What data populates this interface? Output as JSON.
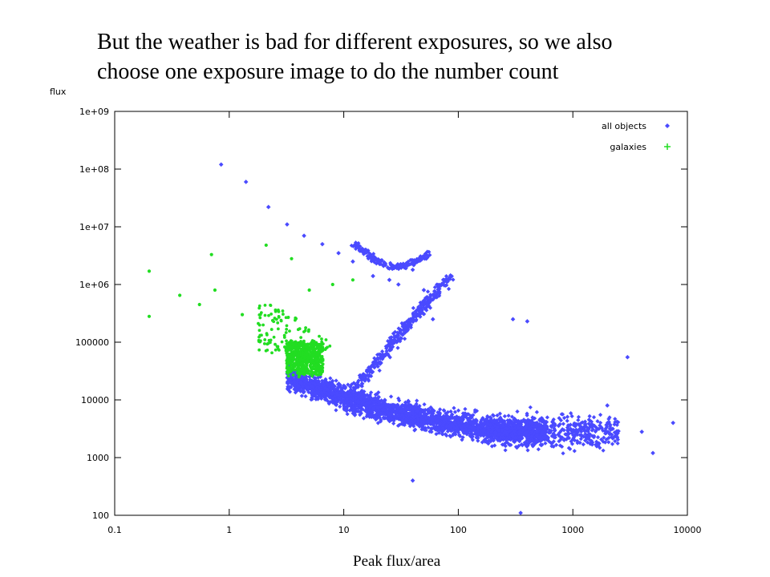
{
  "slide": {
    "title_line1": "But the weather is bad for different exposures, so we also",
    "title_line2": "choose one exposure image to do the number count",
    "xlabel": "Peak flux/area"
  },
  "chart_data": {
    "type": "scatter",
    "xscale": "log",
    "yscale": "log",
    "xlim": [
      0.1,
      10000
    ],
    "ylim": [
      100,
      1000000000
    ],
    "xlabel": "Peak flux/area",
    "ylabel": "flux",
    "x_ticks": [
      "0.1",
      "1",
      "10",
      "100",
      "1000",
      "10000"
    ],
    "y_ticks": [
      "100",
      "1000",
      "10000",
      "100000",
      "1e+06",
      "1e+07",
      "1e+08",
      "1e+09"
    ],
    "grid": false,
    "legend_position": "top-right",
    "series": [
      {
        "name": "all objects",
        "marker": "diamond",
        "color": "#4a4aff",
        "points": [
          [
            0.85,
            120000000
          ],
          [
            1.4,
            60000000
          ],
          [
            2.2,
            22000000
          ],
          [
            3.2,
            11000000
          ],
          [
            4.5,
            7000000
          ],
          [
            6.5,
            5000000
          ],
          [
            9,
            3500000
          ],
          [
            12,
            2500000
          ],
          [
            18,
            1400000
          ],
          [
            25,
            1200000
          ],
          [
            30,
            1000000
          ],
          [
            40,
            1800000
          ],
          [
            50,
            800000
          ],
          [
            60,
            250000
          ],
          [
            3000,
            55000
          ],
          [
            300,
            250000
          ],
          [
            400,
            230000
          ],
          [
            2000,
            8000
          ],
          [
            7500,
            4000
          ],
          [
            4000,
            2800
          ],
          [
            5000,
            1200
          ],
          [
            350,
            110
          ],
          [
            40,
            400
          ]
        ]
      },
      {
        "name": "galaxies",
        "marker": "cross",
        "color": "#22dd22",
        "points": [
          [
            0.2,
            1700000
          ],
          [
            0.2,
            280000
          ],
          [
            0.37,
            650000
          ],
          [
            0.55,
            450000
          ],
          [
            0.7,
            3300000
          ],
          [
            0.75,
            800000
          ],
          [
            1.3,
            300000
          ],
          [
            2.1,
            4800000
          ],
          [
            3.5,
            2800000
          ],
          [
            12,
            1200000
          ],
          [
            8,
            1000000
          ],
          [
            5,
            800000
          ]
        ]
      }
    ]
  }
}
